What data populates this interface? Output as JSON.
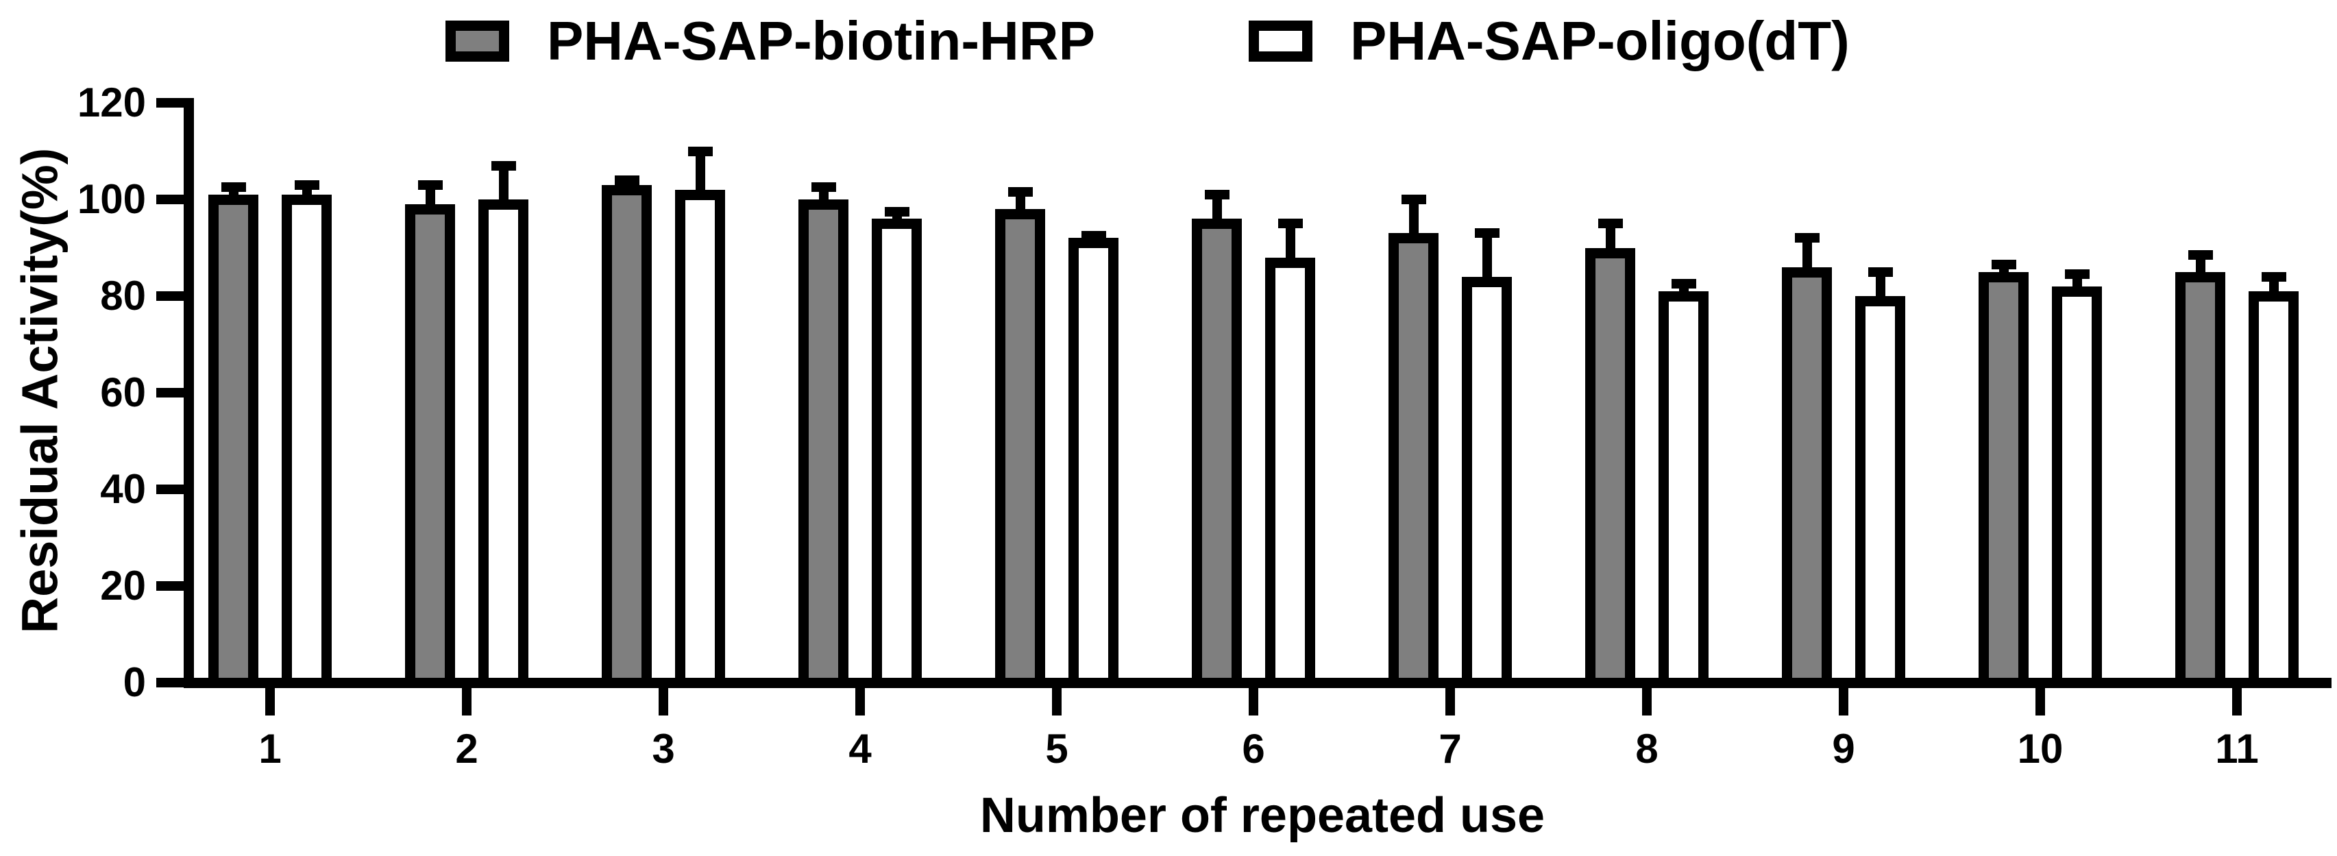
{
  "legend": {
    "items": [
      {
        "label": "PHA-SAP-biotin-HRP",
        "fill": "#7f7f7f"
      },
      {
        "label": "PHA-SAP-oligo(dT)",
        "fill": "#ffffff"
      }
    ]
  },
  "chart_data": {
    "type": "bar",
    "title": "",
    "xlabel": "Number of repeated use",
    "ylabel": "Residual Activity(%)",
    "categories": [
      "1",
      "2",
      "3",
      "4",
      "5",
      "6",
      "7",
      "8",
      "9",
      "10",
      "11"
    ],
    "ylim": [
      0,
      120
    ],
    "yticks": [
      0,
      20,
      40,
      60,
      80,
      100,
      120
    ],
    "grid": false,
    "legend_position": "top",
    "error_bars": "upper standard deviation only",
    "bar_outline_color": "#000000",
    "series": [
      {
        "name": "PHA-SAP-biotin-HRP",
        "fill": "#7f7f7f",
        "values": [
          100,
          98,
          102,
          99,
          97,
          95,
          92,
          89,
          85,
          84,
          84
        ],
        "errors": [
          2.5,
          5,
          2,
          3.5,
          4.5,
          6,
          8,
          6,
          7,
          2.5,
          4.5
        ]
      },
      {
        "name": "PHA-SAP-oligo(dT)",
        "fill": "#ffffff",
        "values": [
          100,
          99,
          101,
          95,
          91,
          87,
          83,
          80,
          79,
          81,
          80
        ],
        "errors": [
          3,
          8,
          9,
          2.5,
          1.5,
          8,
          10,
          2.5,
          6,
          3.5,
          4
        ]
      }
    ]
  }
}
